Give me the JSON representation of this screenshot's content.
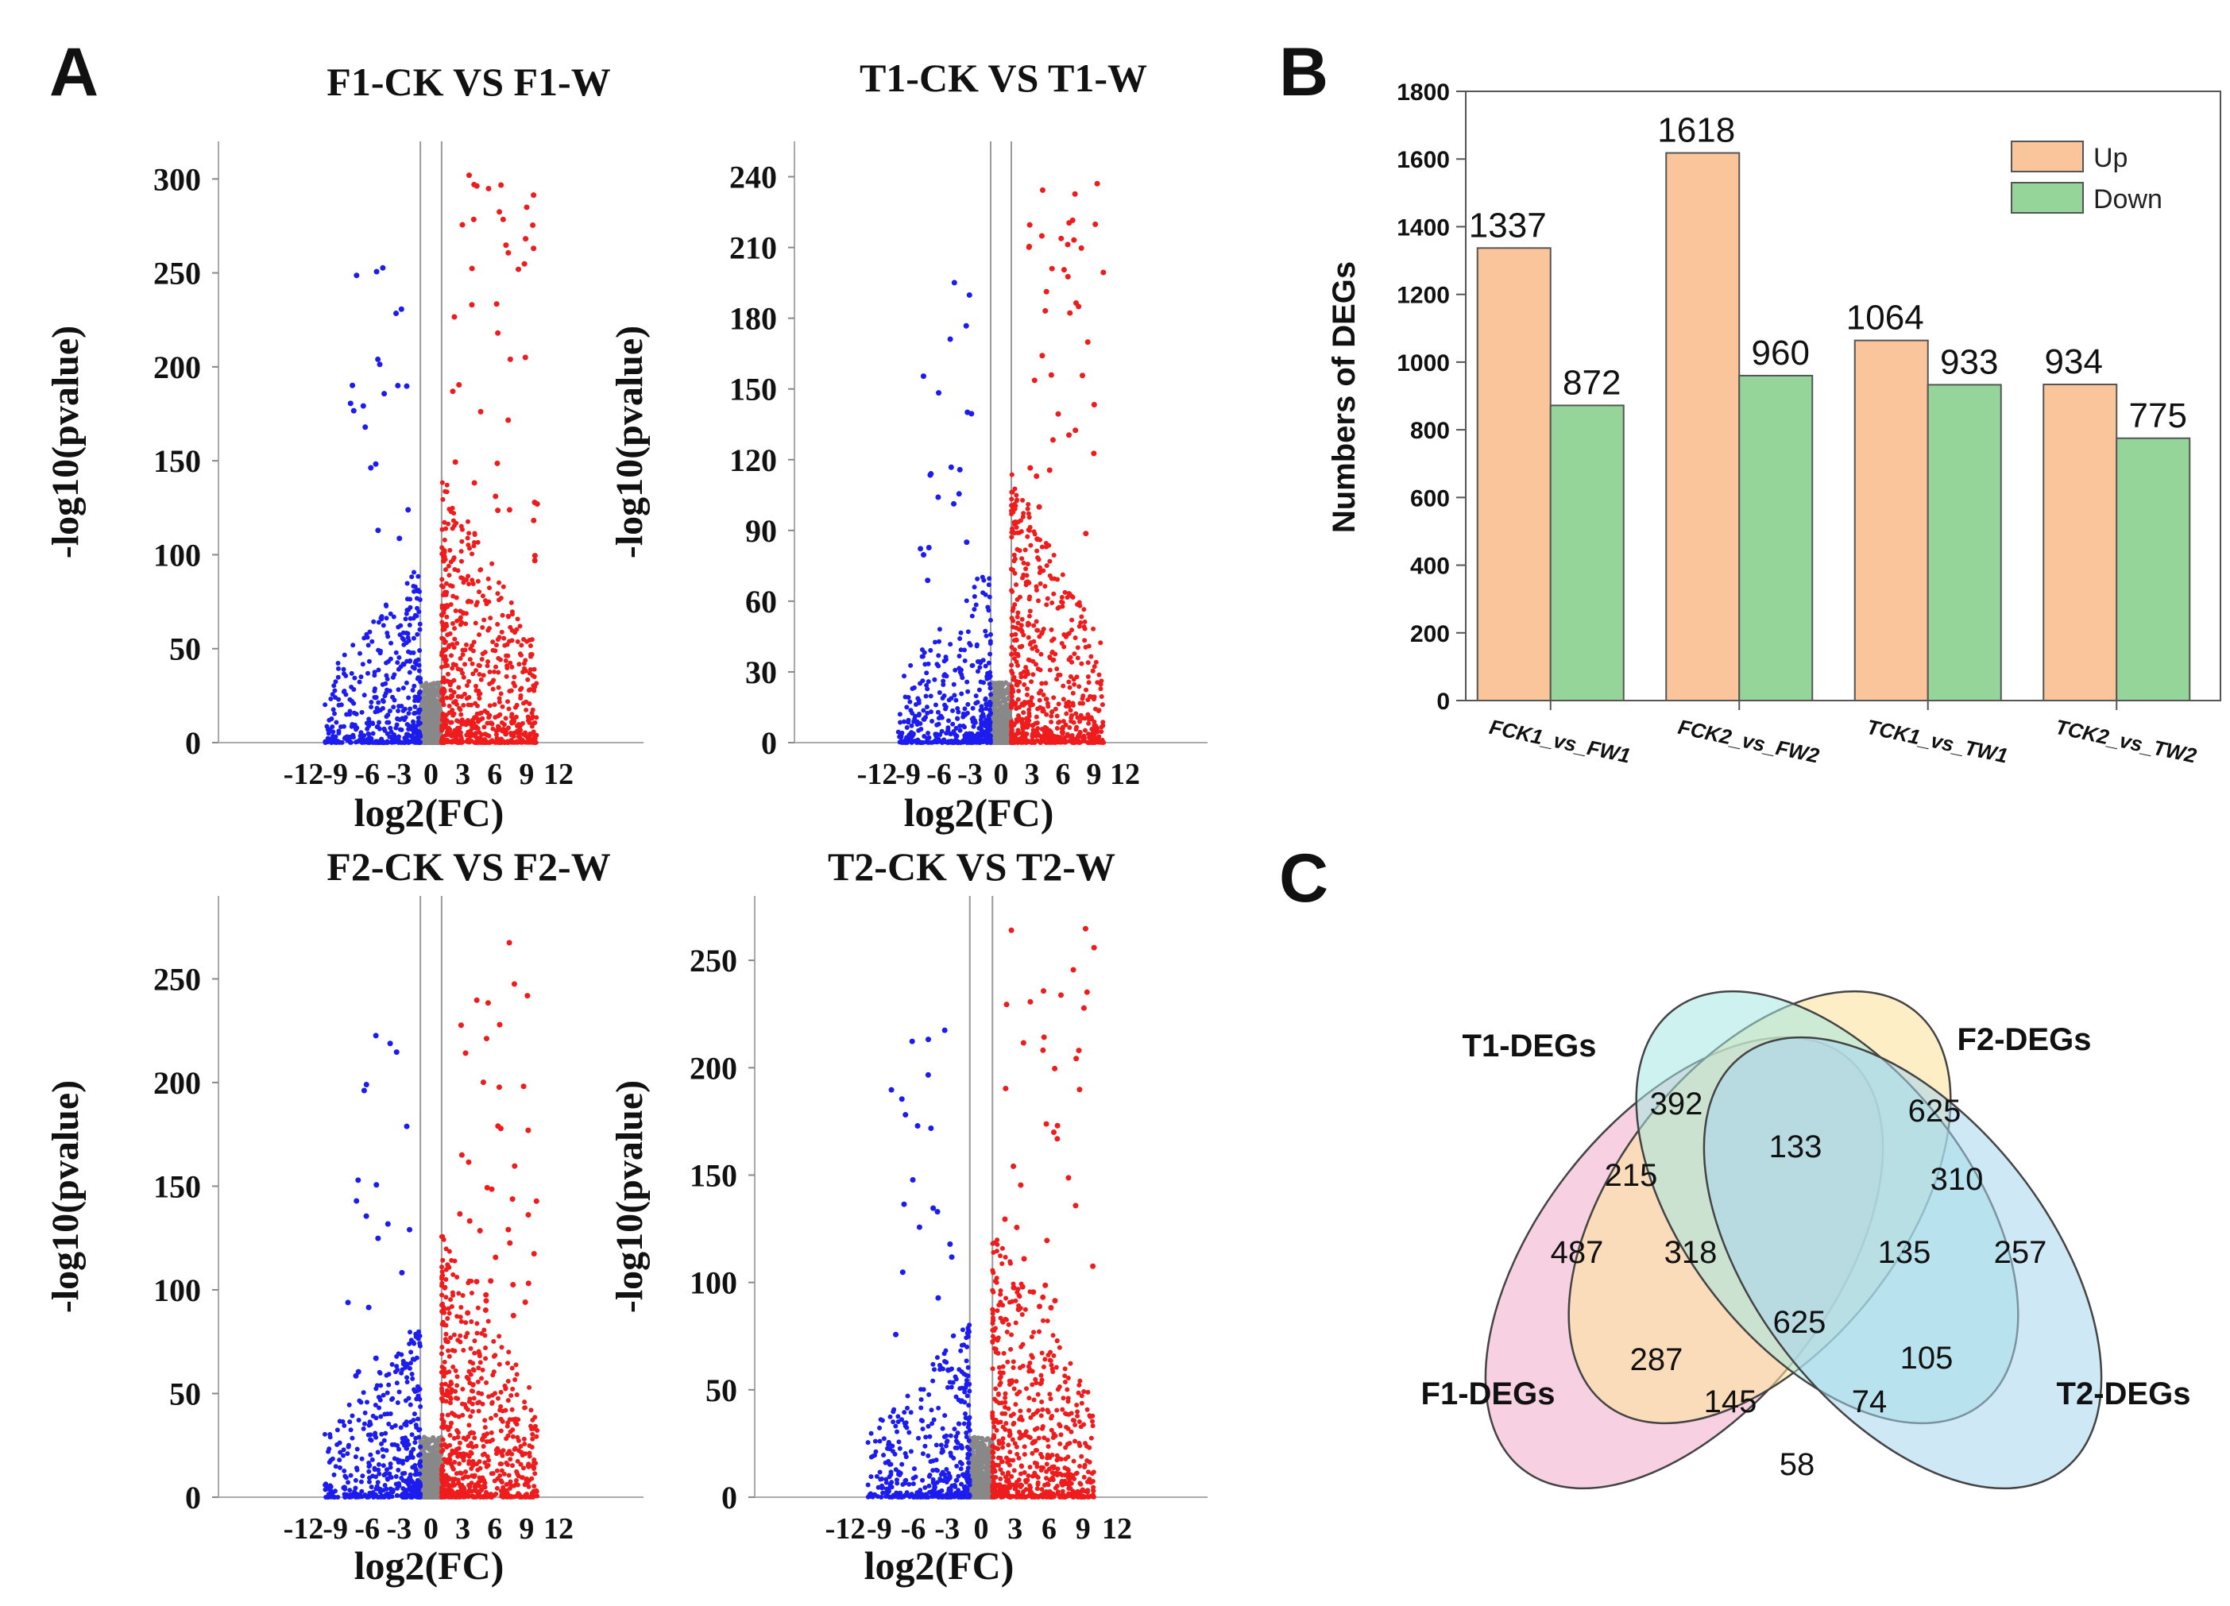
{
  "panel_labels": {
    "a": "A",
    "b": "B",
    "c": "C"
  },
  "volcano": {
    "xlabel": "log2(FC)",
    "ylabel": "-log10(pvalue)",
    "x_ticks": [
      -12,
      -9,
      -6,
      -3,
      0,
      3,
      6,
      9,
      12
    ],
    "plots": [
      {
        "title": "F1-CK VS F1-W",
        "y_ticks": [
          0,
          50,
          100,
          150,
          200,
          250,
          300
        ],
        "ymax": 320
      },
      {
        "title": "T1-CK VS T1-W",
        "y_ticks": [
          0,
          30,
          60,
          90,
          120,
          150,
          180,
          210,
          240
        ],
        "ymax": 255
      },
      {
        "title": "F2-CK VS F2-W",
        "y_ticks": [
          0,
          50,
          100,
          150,
          200,
          250
        ],
        "ymax": 290
      },
      {
        "title": "T2-CK VS T2-W",
        "y_ticks": [
          0,
          50,
          100,
          150,
          200,
          250
        ],
        "ymax": 280
      }
    ]
  },
  "chart_data": [
    {
      "type": "bar",
      "panel": "B",
      "title": "",
      "xlabel": "",
      "ylabel": "Numbers of DEGs",
      "ylim": [
        0,
        1800
      ],
      "yticks": [
        0,
        200,
        400,
        600,
        800,
        1000,
        1200,
        1400,
        1600,
        1800
      ],
      "categories": [
        "FCK1_vs_FW1",
        "FCK2_vs_FW2",
        "TCK1_vs_TW1",
        "TCK2_vs_TW2"
      ],
      "series": [
        {
          "name": "Up",
          "values": [
            1337,
            1618,
            1064,
            934
          ],
          "color": "#fbc59c"
        },
        {
          "name": "Down",
          "values": [
            872,
            960,
            933,
            775
          ],
          "color": "#95d59a"
        }
      ],
      "legend": "top-right"
    },
    {
      "type": "venn",
      "panel": "C",
      "sets": [
        {
          "name": "T1-DEGs",
          "color": "#fbe3a0"
        },
        {
          "name": "F2-DEGs",
          "color": "#a5e8e2"
        },
        {
          "name": "F1-DEGs",
          "color": "#f4c1d7"
        },
        {
          "name": "T2-DEGs",
          "color": "#a8d6ee"
        }
      ],
      "regions": {
        "T1_only": 392,
        "F2_only": 625,
        "F1_only": 487,
        "T2_only": 257,
        "F1_T1": 215,
        "T1_F2": 133,
        "F2_T2": 310,
        "F1_T1_F2": 318,
        "T1_F2_T2": 135,
        "all": 625,
        "F1_F2": 287,
        "F1_T2": 58,
        "F1_F2_T2": 145,
        "F1_T1_T2": 74,
        "T1_T2": 105
      }
    }
  ]
}
